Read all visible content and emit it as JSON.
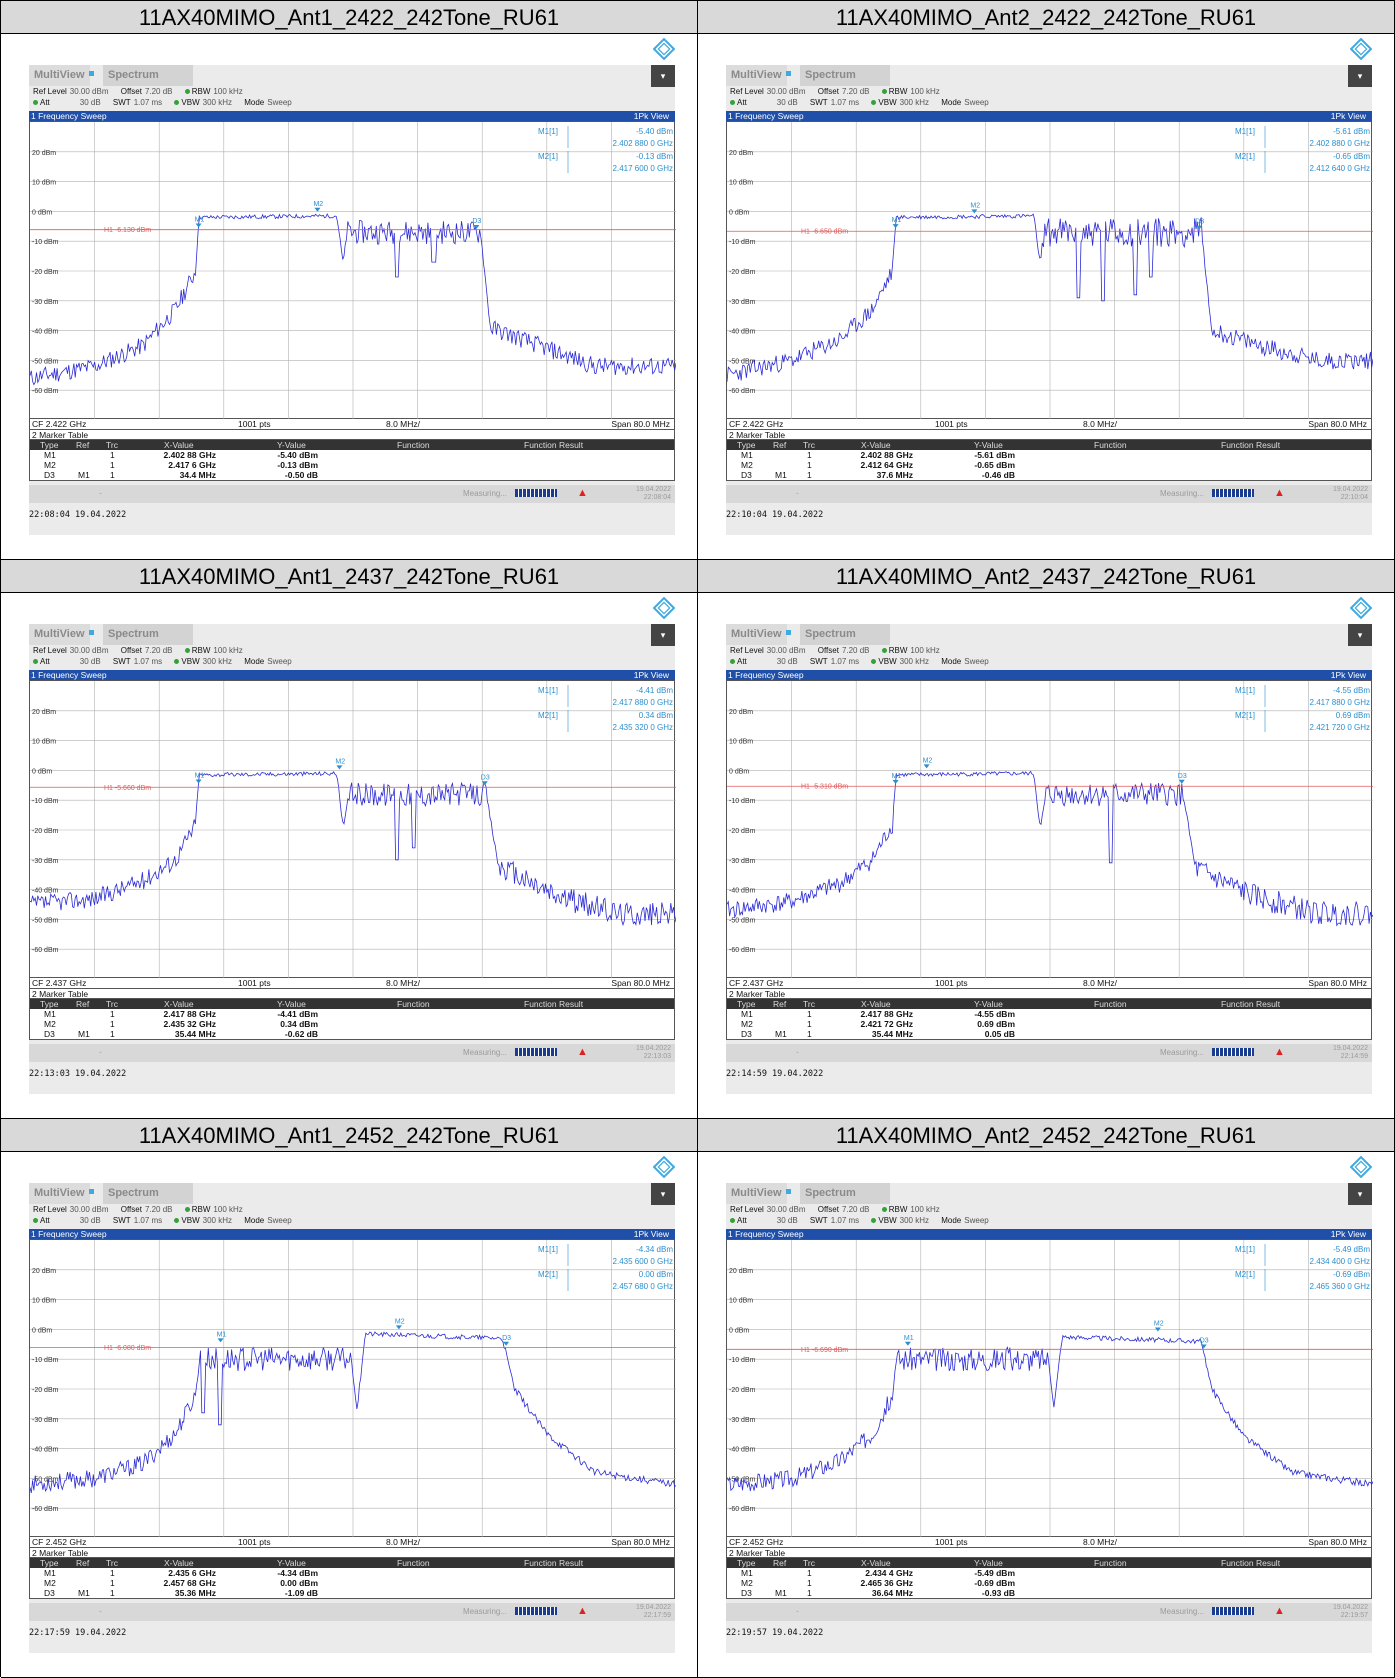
{
  "common": {
    "tab_multiview": "MultiView",
    "tab_spectrum": "Spectrum",
    "ref_level_label": "Ref Level",
    "ref_level": "30.00 dBm",
    "offset_label": "Offset",
    "offset": "7.20 dB",
    "rbw_label": "RBW",
    "rbw": "100 kHz",
    "att_label": "Att",
    "att": "30 dB",
    "swt_label": "SWT",
    "swt": "1.07 ms",
    "vbw_label": "VBW",
    "vbw": "300 kHz",
    "mode_label": "Mode",
    "mode": "Sweep",
    "sweep_title": "1 Frequency Sweep",
    "view_label": "1Pk View",
    "points": "1001 pts",
    "div": "8.0 MHz/",
    "span": "Span 80.0 MHz",
    "marker_table_title": "2 Marker Table",
    "col_type": "Type",
    "col_ref": "Ref",
    "col_trc": "Trc",
    "col_x": "X-Value",
    "col_y": "Y-Value",
    "col_func": "Function",
    "col_func_result": "Function Result",
    "measuring": "Measuring...",
    "status_date": "19.04.2022",
    "y_tick_labels": [
      "20 dBm",
      "10 dBm",
      "0 dBm",
      "-10 dBm",
      "-20 dBm",
      "-30 dBm",
      "-40 dBm",
      "-50 dBm",
      "-60 dBm"
    ],
    "trace_color": "#2b2bd6",
    "threshold_color": "#e05a5a",
    "marker_color": "#2a8fd0"
  },
  "chart_data": [
    {
      "type": "line",
      "title": "11AX40MIMO_Ant1_2422_242Tone_RU61",
      "cf": "CF 2.422 GHz",
      "xlim_ghz": [
        2.382,
        2.462
      ],
      "ylim_dbm": [
        -70,
        30
      ],
      "threshold": {
        "label": "H1 -6.130 dBm",
        "value": -6.13
      },
      "markers": [
        {
          "name": "M1",
          "x_ghz": 2.40288,
          "y_dbm": -5.4
        },
        {
          "name": "M2",
          "x_ghz": 2.4176,
          "y_dbm": -0.13
        },
        {
          "name": "D3",
          "x_ghz": 2.43728,
          "y_dbm": -5.9
        }
      ],
      "marker_info": [
        {
          "label": "M1[1]",
          "y": "-5.40 dBm",
          "x": "2.402 880 0 GHz"
        },
        {
          "label": "M2[1]",
          "y": "-0.13 dBm",
          "x": "2.417 600 0 GHz"
        }
      ],
      "table": [
        {
          "type": "M1",
          "ref": "",
          "trc": "1",
          "x": "2.402 88 GHz",
          "y": "-5.40 dBm"
        },
        {
          "type": "M2",
          "ref": "",
          "trc": "1",
          "x": "2.417 6 GHz",
          "y": "-0.13 dBm"
        },
        {
          "type": "D3",
          "ref": "M1",
          "trc": "1",
          "x": "34.4 MHz",
          "y": "-0.50 dB"
        }
      ],
      "status_time": "22:08:04",
      "timestamp": "22:08:04  19.04.2022",
      "trace_pts": [
        [
          2.382,
          -56
        ],
        [
          2.39,
          -52
        ],
        [
          2.396,
          -45
        ],
        [
          2.4,
          -33
        ],
        [
          2.4025,
          -20
        ],
        [
          2.4029,
          -2
        ],
        [
          2.42,
          -1.5
        ],
        [
          2.4208,
          -18
        ],
        [
          2.4212,
          -7
        ],
        [
          2.4378,
          -7
        ],
        [
          2.439,
          -39
        ],
        [
          2.445,
          -45
        ],
        [
          2.452,
          -52
        ],
        [
          2.462,
          -52
        ]
      ],
      "noise": [
        [
          2.382,
          2.4025,
          3
        ],
        [
          2.4029,
          2.4205,
          0.7
        ],
        [
          2.4212,
          2.4378,
          4
        ],
        [
          2.439,
          2.462,
          3
        ]
      ],
      "dips": [
        [
          2.4275,
          -22
        ],
        [
          2.432,
          -17
        ]
      ],
      "seed": 11
    },
    {
      "type": "line",
      "title": "11AX40MIMO_Ant2_2422_242Tone_RU61",
      "cf": "CF 2.422 GHz",
      "xlim_ghz": [
        2.382,
        2.462
      ],
      "ylim_dbm": [
        -70,
        30
      ],
      "threshold": {
        "label": "H1 -6.650 dBm",
        "value": -6.65
      },
      "markers": [
        {
          "name": "M1",
          "x_ghz": 2.40288,
          "y_dbm": -5.61
        },
        {
          "name": "M2",
          "x_ghz": 2.41264,
          "y_dbm": -0.65
        },
        {
          "name": "D3",
          "x_ghz": 2.44048,
          "y_dbm": -6.1
        }
      ],
      "marker_info": [
        {
          "label": "M1[1]",
          "y": "-5.61 dBm",
          "x": "2.402 880 0 GHz"
        },
        {
          "label": "M2[1]",
          "y": "-0.65 dBm",
          "x": "2.412 640 0 GHz"
        }
      ],
      "table": [
        {
          "type": "M1",
          "ref": "",
          "trc": "1",
          "x": "2.402 88 GHz",
          "y": "-5.61 dBm"
        },
        {
          "type": "M2",
          "ref": "",
          "trc": "1",
          "x": "2.412 64 GHz",
          "y": "-0.65 dBm"
        },
        {
          "type": "D3",
          "ref": "M1",
          "trc": "1",
          "x": "37.6 MHz",
          "y": "-0.46 dB"
        }
      ],
      "status_time": "22:10:04",
      "timestamp": "22:10:04  19.04.2022",
      "trace_pts": [
        [
          2.382,
          -55
        ],
        [
          2.39,
          -50
        ],
        [
          2.396,
          -43
        ],
        [
          2.4,
          -33
        ],
        [
          2.4025,
          -20
        ],
        [
          2.4029,
          -2
        ],
        [
          2.42,
          -1.5
        ],
        [
          2.4208,
          -18
        ],
        [
          2.4212,
          -7
        ],
        [
          2.4408,
          -7
        ],
        [
          2.442,
          -40
        ],
        [
          2.448,
          -45
        ],
        [
          2.455,
          -50
        ],
        [
          2.462,
          -50
        ]
      ],
      "noise": [
        [
          2.382,
          2.4025,
          3
        ],
        [
          2.4029,
          2.4205,
          0.7
        ],
        [
          2.4212,
          2.4408,
          5
        ],
        [
          2.442,
          2.462,
          3
        ]
      ],
      "dips": [
        [
          2.4255,
          -29
        ],
        [
          2.4285,
          -30
        ],
        [
          2.4325,
          -28
        ],
        [
          2.4345,
          -22
        ]
      ],
      "seed": 23
    },
    {
      "type": "line",
      "title": "11AX40MIMO_Ant1_2437_242Tone_RU61",
      "cf": "CF 2.437 GHz",
      "xlim_ghz": [
        2.397,
        2.477
      ],
      "ylim_dbm": [
        -70,
        30
      ],
      "threshold": {
        "label": "H1 -5.660 dBm",
        "value": -5.66
      },
      "markers": [
        {
          "name": "M1",
          "x_ghz": 2.41788,
          "y_dbm": -4.41
        },
        {
          "name": "M2",
          "x_ghz": 2.43532,
          "y_dbm": 0.34
        },
        {
          "name": "D3",
          "x_ghz": 2.45332,
          "y_dbm": -5.0
        }
      ],
      "marker_info": [
        {
          "label": "M1[1]",
          "y": "-4.41 dBm",
          "x": "2.417 880 0 GHz"
        },
        {
          "label": "M2[1]",
          "y": "0.34 dBm",
          "x": "2.435 320 0 GHz"
        }
      ],
      "table": [
        {
          "type": "M1",
          "ref": "",
          "trc": "1",
          "x": "2.417 88 GHz",
          "y": "-4.41 dBm"
        },
        {
          "type": "M2",
          "ref": "",
          "trc": "1",
          "x": "2.435 32 GHz",
          "y": "0.34 dBm"
        },
        {
          "type": "D3",
          "ref": "M1",
          "trc": "1",
          "x": "35.44 MHz",
          "y": "-0.62 dB"
        }
      ],
      "status_time": "22:13:03",
      "timestamp": "22:13:03  19.04.2022",
      "trace_pts": [
        [
          2.397,
          -45
        ],
        [
          2.405,
          -43
        ],
        [
          2.411,
          -37
        ],
        [
          2.415,
          -30
        ],
        [
          2.4175,
          -18
        ],
        [
          2.4179,
          -1.5
        ],
        [
          2.435,
          -1
        ],
        [
          2.4358,
          -20
        ],
        [
          2.4365,
          -8
        ],
        [
          2.4535,
          -8
        ],
        [
          2.455,
          -32
        ],
        [
          2.462,
          -42
        ],
        [
          2.47,
          -48
        ],
        [
          2.477,
          -48
        ]
      ],
      "noise": [
        [
          2.397,
          2.4175,
          3
        ],
        [
          2.4179,
          2.4355,
          0.7
        ],
        [
          2.4365,
          2.4535,
          4
        ],
        [
          2.455,
          2.477,
          4
        ]
      ],
      "dips": [
        [
          2.4425,
          -30
        ],
        [
          2.4445,
          -26
        ]
      ],
      "seed": 37
    },
    {
      "type": "line",
      "title": "11AX40MIMO_Ant2_2437_242Tone_RU61",
      "cf": "CF 2.437 GHz",
      "xlim_ghz": [
        2.397,
        2.477
      ],
      "ylim_dbm": [
        -70,
        30
      ],
      "threshold": {
        "label": "H1 -5.310 dBm",
        "value": -5.31
      },
      "markers": [
        {
          "name": "M1",
          "x_ghz": 2.41788,
          "y_dbm": -4.55
        },
        {
          "name": "M2",
          "x_ghz": 2.42172,
          "y_dbm": 0.69
        },
        {
          "name": "D3",
          "x_ghz": 2.45332,
          "y_dbm": -4.5
        }
      ],
      "marker_info": [
        {
          "label": "M1[1]",
          "y": "-4.55 dBm",
          "x": "2.417 880 0 GHz"
        },
        {
          "label": "M2[1]",
          "y": "0.69 dBm",
          "x": "2.421 720 0 GHz"
        }
      ],
      "table": [
        {
          "type": "M1",
          "ref": "",
          "trc": "1",
          "x": "2.417 88 GHz",
          "y": "-4.55 dBm"
        },
        {
          "type": "M2",
          "ref": "",
          "trc": "1",
          "x": "2.421 72 GHz",
          "y": "0.69 dBm"
        },
        {
          "type": "D3",
          "ref": "M1",
          "trc": "1",
          "x": "35.44 MHz",
          "y": "0.05 dB"
        }
      ],
      "status_time": "22:14:59",
      "timestamp": "22:14:59  19.04.2022",
      "trace_pts": [
        [
          2.397,
          -47
        ],
        [
          2.405,
          -44
        ],
        [
          2.411,
          -38
        ],
        [
          2.415,
          -30
        ],
        [
          2.4175,
          -18
        ],
        [
          2.4179,
          -1.5
        ],
        [
          2.435,
          -1
        ],
        [
          2.4358,
          -20
        ],
        [
          2.4365,
          -8
        ],
        [
          2.4535,
          -8
        ],
        [
          2.455,
          -33
        ],
        [
          2.462,
          -42
        ],
        [
          2.47,
          -48
        ],
        [
          2.477,
          -48
        ]
      ],
      "noise": [
        [
          2.397,
          2.4175,
          3
        ],
        [
          2.4179,
          2.4355,
          0.7
        ],
        [
          2.4365,
          2.4535,
          4
        ],
        [
          2.455,
          2.477,
          4
        ]
      ],
      "dips": [
        [
          2.4445,
          -31
        ]
      ],
      "seed": 41
    },
    {
      "type": "line",
      "title": "11AX40MIMO_Ant1_2452_242Tone_RU61",
      "cf": "CF 2.452 GHz",
      "xlim_ghz": [
        2.412,
        2.492
      ],
      "ylim_dbm": [
        -70,
        30
      ],
      "threshold": {
        "label": "H1 -6.080 dBm",
        "value": -6.08
      },
      "markers": [
        {
          "name": "M1",
          "x_ghz": 2.4356,
          "y_dbm": -4.34
        },
        {
          "name": "M2",
          "x_ghz": 2.45768,
          "y_dbm": 0.0
        },
        {
          "name": "D3",
          "x_ghz": 2.47096,
          "y_dbm": -5.5
        }
      ],
      "marker_info": [
        {
          "label": "M1[1]",
          "y": "-4.34 dBm",
          "x": "2.435 600 0 GHz"
        },
        {
          "label": "M2[1]",
          "y": "0.00 dBm",
          "x": "2.457 680 0 GHz"
        }
      ],
      "table": [
        {
          "type": "M1",
          "ref": "",
          "trc": "1",
          "x": "2.435 6 GHz",
          "y": "-4.34 dBm"
        },
        {
          "type": "M2",
          "ref": "",
          "trc": "1",
          "x": "2.457 68 GHz",
          "y": "0.00 dBm"
        },
        {
          "type": "D3",
          "ref": "M1",
          "trc": "1",
          "x": "35.36 MHz",
          "y": "-1.09 dB"
        }
      ],
      "status_time": "22:17:59",
      "timestamp": "22:17:59  19.04.2022",
      "trace_pts": [
        [
          2.412,
          -52
        ],
        [
          2.42,
          -50
        ],
        [
          2.426,
          -45
        ],
        [
          2.43,
          -35
        ],
        [
          2.4325,
          -22
        ],
        [
          2.433,
          -10
        ],
        [
          2.4518,
          -10
        ],
        [
          2.4525,
          -27
        ],
        [
          2.4535,
          -1.5
        ],
        [
          2.4705,
          -3
        ],
        [
          2.472,
          -20
        ],
        [
          2.476,
          -35
        ],
        [
          2.482,
          -48
        ],
        [
          2.492,
          -52
        ]
      ],
      "noise": [
        [
          2.412,
          2.4325,
          3
        ],
        [
          2.433,
          2.4518,
          4
        ],
        [
          2.4535,
          2.4705,
          0.8
        ],
        [
          2.472,
          2.492,
          1.2
        ]
      ],
      "dips": [
        [
          2.4355,
          -32
        ],
        [
          2.4335,
          -28
        ]
      ],
      "seed": 53
    },
    {
      "type": "line",
      "title": "11AX40MIMO_Ant2_2452_242Tone_RU61",
      "cf": "CF 2.452 GHz",
      "xlim_ghz": [
        2.412,
        2.492
      ],
      "ylim_dbm": [
        -70,
        30
      ],
      "threshold": {
        "label": "H1 -6.690 dBm",
        "value": -6.69
      },
      "markers": [
        {
          "name": "M1",
          "x_ghz": 2.4344,
          "y_dbm": -5.49
        },
        {
          "name": "M2",
          "x_ghz": 2.46536,
          "y_dbm": -0.69
        },
        {
          "name": "D3",
          "x_ghz": 2.47104,
          "y_dbm": -6.4
        }
      ],
      "marker_info": [
        {
          "label": "M1[1]",
          "y": "-5.49 dBm",
          "x": "2.434 400 0 GHz"
        },
        {
          "label": "M2[1]",
          "y": "-0.69 dBm",
          "x": "2.465 360 0 GHz"
        }
      ],
      "table": [
        {
          "type": "M1",
          "ref": "",
          "trc": "1",
          "x": "2.434 4 GHz",
          "y": "-5.49 dBm"
        },
        {
          "type": "M2",
          "ref": "",
          "trc": "1",
          "x": "2.465 36 GHz",
          "y": "-0.69 dBm"
        },
        {
          "type": "D3",
          "ref": "M1",
          "trc": "1",
          "x": "36.64 MHz",
          "y": "-0.93 dB"
        }
      ],
      "status_time": "22:19:57",
      "timestamp": "22:19:57  19.04.2022",
      "trace_pts": [
        [
          2.412,
          -52
        ],
        [
          2.42,
          -50
        ],
        [
          2.426,
          -44
        ],
        [
          2.43,
          -35
        ],
        [
          2.4325,
          -22
        ],
        [
          2.433,
          -10
        ],
        [
          2.4518,
          -10
        ],
        [
          2.4525,
          -26
        ],
        [
          2.4535,
          -2.5
        ],
        [
          2.4708,
          -4
        ],
        [
          2.472,
          -20
        ],
        [
          2.476,
          -36
        ],
        [
          2.482,
          -48
        ],
        [
          2.492,
          -52
        ]
      ],
      "noise": [
        [
          2.412,
          2.4325,
          3
        ],
        [
          2.433,
          2.4518,
          4
        ],
        [
          2.4535,
          2.4708,
          0.8
        ],
        [
          2.472,
          2.492,
          1.2
        ]
      ],
      "dips": [],
      "seed": 67
    }
  ]
}
